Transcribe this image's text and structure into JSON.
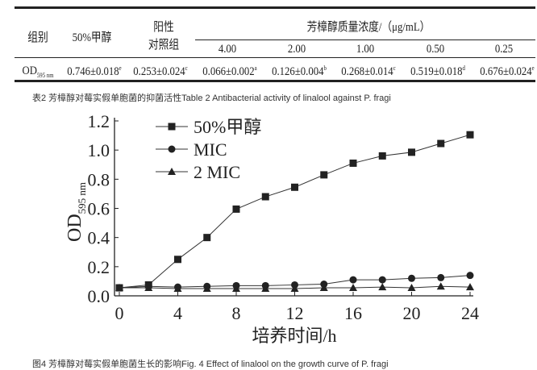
{
  "table": {
    "headers": {
      "group": "组别",
      "methanol": "50%甲醇",
      "positive": "阳性",
      "positive2": "对照组",
      "conc": "芳樟醇质量浓度/（μg/mL）",
      "concs": [
        "4.00",
        "2.00",
        "1.00",
        "0.50",
        "0.25"
      ]
    },
    "row": {
      "label": "OD",
      "label_sub": "595 nm",
      "values": [
        "0.746±0.018",
        "0.253±0.024",
        "0.066±0.002",
        "0.126±0.004",
        "0.268±0.014",
        "0.519±0.018",
        "0.676±0.024"
      ],
      "sups": [
        "e",
        "c",
        "a",
        "b",
        "c",
        "d",
        "e"
      ]
    },
    "caption": "表2 芳樟醇对莓实假单胞菌的抑菌活性Table 2 Antibacterial activity of linalool against P. fragi"
  },
  "chart_data": {
    "type": "line",
    "xlabel": "培养时间/h",
    "ylabel": "OD",
    "ylabel_sub": "595 nm",
    "xlim": [
      0,
      24
    ],
    "ylim": [
      0,
      1.2
    ],
    "xticks": [
      0,
      4,
      8,
      12,
      16,
      20,
      24
    ],
    "yticks": [
      "0.0",
      "0.2",
      "0.4",
      "0.6",
      "0.8",
      "1.0",
      "1.2"
    ],
    "legend_position": "top-left",
    "x": [
      0,
      2,
      4,
      6,
      8,
      10,
      12,
      14,
      16,
      18,
      20,
      22,
      24
    ],
    "series": [
      {
        "name": "50%甲醇",
        "marker": "square",
        "values": [
          0.055,
          0.075,
          0.25,
          0.4,
          0.595,
          0.68,
          0.745,
          0.83,
          0.91,
          0.96,
          0.985,
          1.045,
          1.105
        ]
      },
      {
        "name": "MIC",
        "marker": "circle",
        "values": [
          0.055,
          0.065,
          0.06,
          0.065,
          0.07,
          0.07,
          0.075,
          0.08,
          0.11,
          0.11,
          0.12,
          0.125,
          0.14
        ]
      },
      {
        "name": "2 MIC",
        "marker": "triangle",
        "values": [
          0.055,
          0.055,
          0.05,
          0.05,
          0.05,
          0.05,
          0.05,
          0.055,
          0.055,
          0.06,
          0.055,
          0.065,
          0.06
        ]
      }
    ],
    "caption": "图4 芳樟醇对莓实假单胞菌生长的影响Fig. 4 Effect of linalool on the growth curve of P. fragi"
  }
}
